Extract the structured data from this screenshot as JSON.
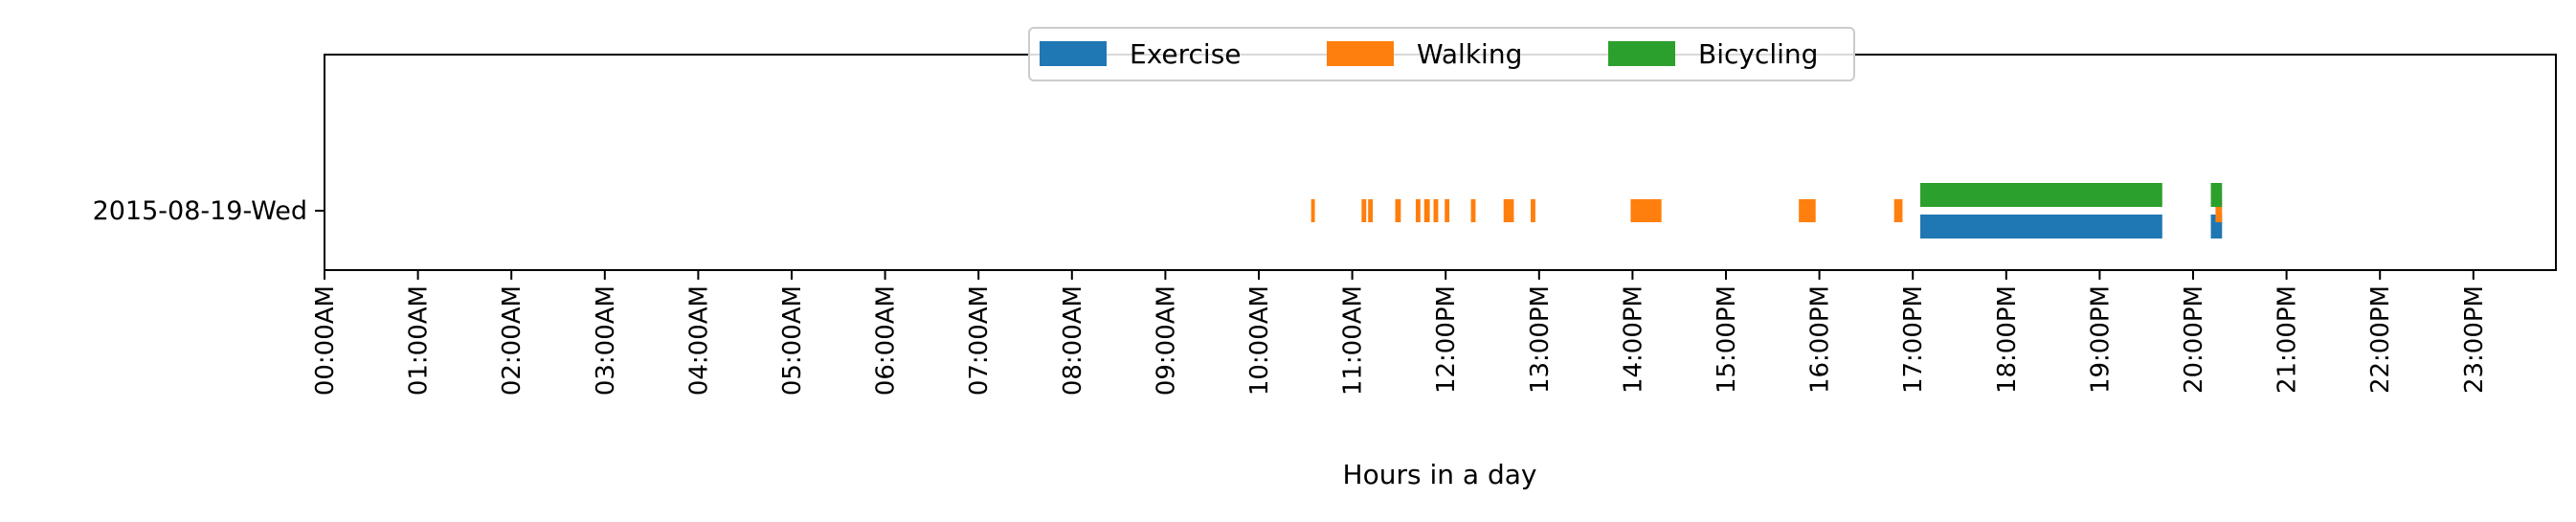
{
  "chart_data": {
    "type": "timeline",
    "title": "",
    "xlabel": "Hours in a day",
    "ylabel": "",
    "xlim": [
      0,
      24
    ],
    "categories": [
      "2015-08-19-Wed"
    ],
    "x_tick_labels": [
      "00:00AM",
      "01:00AM",
      "02:00AM",
      "03:00AM",
      "04:00AM",
      "05:00AM",
      "06:00AM",
      "07:00AM",
      "08:00AM",
      "09:00AM",
      "10:00AM",
      "11:00AM",
      "12:00PM",
      "13:00PM",
      "14:00PM",
      "15:00PM",
      "16:00PM",
      "17:00PM",
      "18:00PM",
      "19:00PM",
      "20:00PM",
      "21:00PM",
      "22:00PM",
      "23:00PM"
    ],
    "legend_position": "top-center",
    "series": [
      {
        "name": "Exercise",
        "color": "#1f77b4",
        "intervals": [
          {
            "start": 17.08,
            "end": 19.67
          },
          {
            "start": 20.19,
            "end": 20.31
          }
        ]
      },
      {
        "name": "Walking",
        "color": "#ff7f0e",
        "intervals": [
          {
            "start": 10.56,
            "end": 10.6
          },
          {
            "start": 11.1,
            "end": 11.15
          },
          {
            "start": 11.17,
            "end": 11.22
          },
          {
            "start": 11.46,
            "end": 11.52
          },
          {
            "start": 11.68,
            "end": 11.73
          },
          {
            "start": 11.77,
            "end": 11.83
          },
          {
            "start": 11.87,
            "end": 11.92
          },
          {
            "start": 11.99,
            "end": 12.04
          },
          {
            "start": 12.27,
            "end": 12.32
          },
          {
            "start": 12.62,
            "end": 12.73
          },
          {
            "start": 12.91,
            "end": 12.96
          },
          {
            "start": 13.98,
            "end": 14.31
          },
          {
            "start": 15.78,
            "end": 15.96
          },
          {
            "start": 16.8,
            "end": 16.89
          },
          {
            "start": 20.24,
            "end": 20.31
          }
        ]
      },
      {
        "name": "Bicycling",
        "color": "#2ca02c",
        "intervals": [
          {
            "start": 17.08,
            "end": 19.67
          },
          {
            "start": 20.19,
            "end": 20.31
          }
        ]
      }
    ]
  }
}
